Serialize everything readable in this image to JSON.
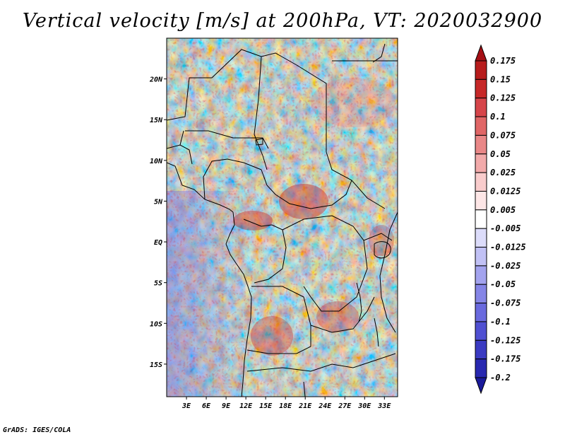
{
  "title": "Vertical velocity [m/s] at 200hPa, VT: 2020032900",
  "footer": "GrADS: IGES/COLA",
  "map": {
    "lat_range": [
      -19,
      25
    ],
    "lon_range": [
      0,
      35
    ],
    "lat_ticks": [
      {
        "value": 20,
        "label": "20N"
      },
      {
        "value": 15,
        "label": "15N"
      },
      {
        "value": 10,
        "label": "10N"
      },
      {
        "value": 5,
        "label": "5N"
      },
      {
        "value": 0,
        "label": "EQ"
      },
      {
        "value": -5,
        "label": "5S"
      },
      {
        "value": -10,
        "label": "10S"
      },
      {
        "value": -15,
        "label": "15S"
      }
    ],
    "lon_ticks": [
      {
        "value": 3,
        "label": "3E"
      },
      {
        "value": 6,
        "label": "6E"
      },
      {
        "value": 9,
        "label": "9E"
      },
      {
        "value": 12,
        "label": "12E"
      },
      {
        "value": 15,
        "label": "15E"
      },
      {
        "value": 18,
        "label": "18E"
      },
      {
        "value": 21,
        "label": "21E"
      },
      {
        "value": 24,
        "label": "24E"
      },
      {
        "value": 27,
        "label": "27E"
      },
      {
        "value": 30,
        "label": "30E"
      },
      {
        "value": 33,
        "label": "33E"
      }
    ],
    "field": "vertical velocity",
    "units": "m/s",
    "level": "200hPa",
    "valid_time": "2020032900"
  },
  "colorbar": {
    "labels": [
      "0.175",
      "0.15",
      "0.125",
      "0.1",
      "0.075",
      "0.05",
      "0.025",
      "0.0125",
      "0.005",
      "-0.005",
      "-0.0125",
      "-0.025",
      "-0.05",
      "-0.075",
      "-0.1",
      "-0.125",
      "-0.175",
      "-0.2"
    ],
    "colors": [
      "#a50f15",
      "#b71c1c",
      "#c62828",
      "#d6454a",
      "#e06666",
      "#e98787",
      "#f2aaaa",
      "#f9cccc",
      "#fde6e6",
      "#ffffff",
      "#dcdcfa",
      "#c1c1f5",
      "#a3a3ee",
      "#8585e6",
      "#6a6ade",
      "#5050d2",
      "#3a3ac2",
      "#2828b0",
      "#1a1a9a"
    ]
  }
}
